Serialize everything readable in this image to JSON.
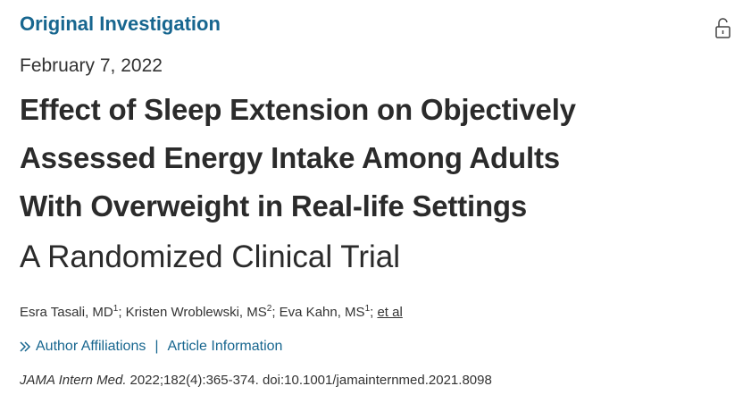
{
  "header": {
    "section": "Original Investigation",
    "date": "February 7, 2022"
  },
  "article": {
    "title_lines": [
      "Effect of Sleep Extension on Objectively",
      "Assessed Energy Intake Among Adults",
      "With Overweight in Real-life Settings"
    ],
    "subtitle": "A Randomized Clinical Trial",
    "authors": [
      {
        "name": "Esra Tasali, MD",
        "affiliation": "1"
      },
      {
        "name": "Kristen Wroblewski, MS",
        "affiliation": "2"
      },
      {
        "name": "Eva Kahn, MS",
        "affiliation": "1"
      }
    ],
    "author_separator": ";",
    "et_al": "et al",
    "links": [
      "Author Affiliations",
      "Article Information"
    ],
    "link_divider": "|",
    "citation": {
      "journal": "JAMA Intern Med.",
      "details": "2022;182(4):365-374. doi:10.1001/jamainternmed.2021.8098"
    }
  }
}
